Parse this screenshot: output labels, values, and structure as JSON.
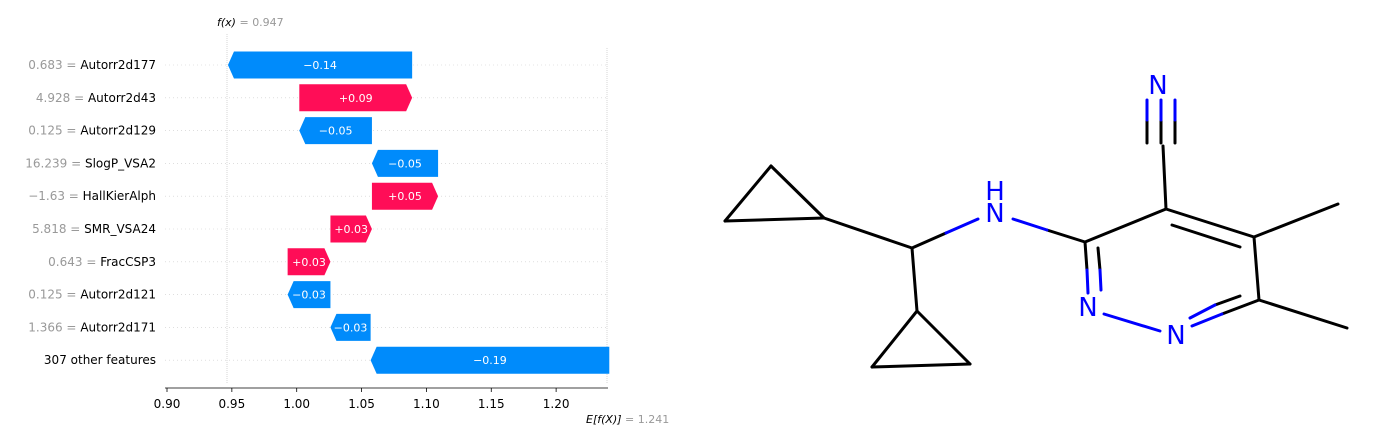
{
  "chart_data": {
    "type": "waterfall",
    "title": "",
    "fx": {
      "label": "f(x)",
      "eq": " = ",
      "value": "0.947",
      "x": 0.947
    },
    "efx": {
      "label": "E[f(X)]",
      "eq": " = ",
      "value": "1.241",
      "x": 1.241
    },
    "xlim": [
      0.9,
      1.24
    ],
    "xticks": [
      "0.90",
      "0.95",
      "1.00",
      "1.05",
      "1.10",
      "1.15",
      "1.20"
    ],
    "features": [
      {
        "value": "0.683",
        "eq": " = ",
        "name": "Autorr2d177",
        "start": 1.089,
        "end": 0.947,
        "label": "−0.14"
      },
      {
        "value": "4.928",
        "eq": " = ",
        "name": "Autorr2d43",
        "start": 1.002,
        "end": 1.089,
        "label": "+0.09"
      },
      {
        "value": "0.125",
        "eq": " = ",
        "name": "Autorr2d129",
        "start": 1.058,
        "end": 1.002,
        "label": "−0.05"
      },
      {
        "value": "16.239",
        "eq": " = ",
        "name": "SlogP_VSA2",
        "start": 1.109,
        "end": 1.058,
        "label": "−0.05"
      },
      {
        "value": "−1.63",
        "eq": " = ",
        "name": "HallKierAlph",
        "start": 1.058,
        "end": 1.109,
        "label": "+0.05"
      },
      {
        "value": "5.818",
        "eq": " = ",
        "name": "SMR_VSA24",
        "start": 1.026,
        "end": 1.058,
        "label": "+0.03"
      },
      {
        "value": "0.643",
        "eq": " = ",
        "name": "FracCSP3",
        "start": 0.993,
        "end": 1.026,
        "label": "+0.03"
      },
      {
        "value": "0.125",
        "eq": " = ",
        "name": "Autorr2d121",
        "start": 1.026,
        "end": 0.993,
        "label": "−0.03"
      },
      {
        "value": "1.366",
        "eq": " = ",
        "name": "Autorr2d171",
        "start": 1.057,
        "end": 1.026,
        "label": "−0.03"
      },
      {
        "value": "",
        "eq": "",
        "name": "307 other features",
        "start": 1.241,
        "end": 1.057,
        "label": "−0.19"
      }
    ],
    "colors": {
      "positive": "#ff0d57",
      "negative": "#008bfb",
      "value_text": "#999999",
      "name_text": "#000000"
    }
  },
  "molecule": {
    "atoms": [
      "N",
      "H",
      "N",
      "N",
      "N"
    ],
    "colors": {
      "bond": "#000000",
      "heteroatom": "#0000ff"
    }
  }
}
